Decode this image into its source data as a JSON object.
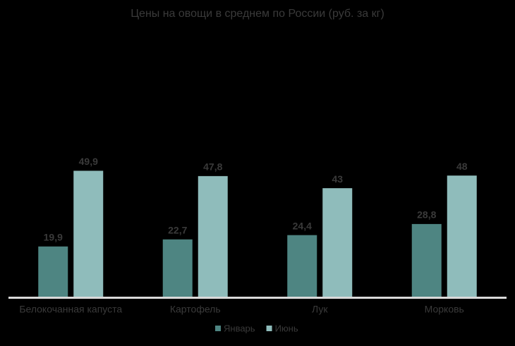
{
  "chart_data": {
    "type": "bar",
    "title": "Цены на овощи в среднем по России (руб. за кг)",
    "categories": [
      "Белокочанная капуста",
      "Картофель",
      "Лук",
      "Морковь"
    ],
    "series": [
      {
        "name": "Январь",
        "color": "#4e8582",
        "values": [
          19.9,
          22.7,
          24.4,
          28.8
        ],
        "value_labels": [
          "19,9",
          "22,7",
          "24,4",
          "28,8"
        ]
      },
      {
        "name": "Июнь",
        "color": "#8fbcbb",
        "values": [
          49.9,
          47.8,
          43,
          48
        ],
        "value_labels": [
          "49,9",
          "47,8",
          "43",
          "48"
        ]
      }
    ],
    "legend": "bottom"
  }
}
